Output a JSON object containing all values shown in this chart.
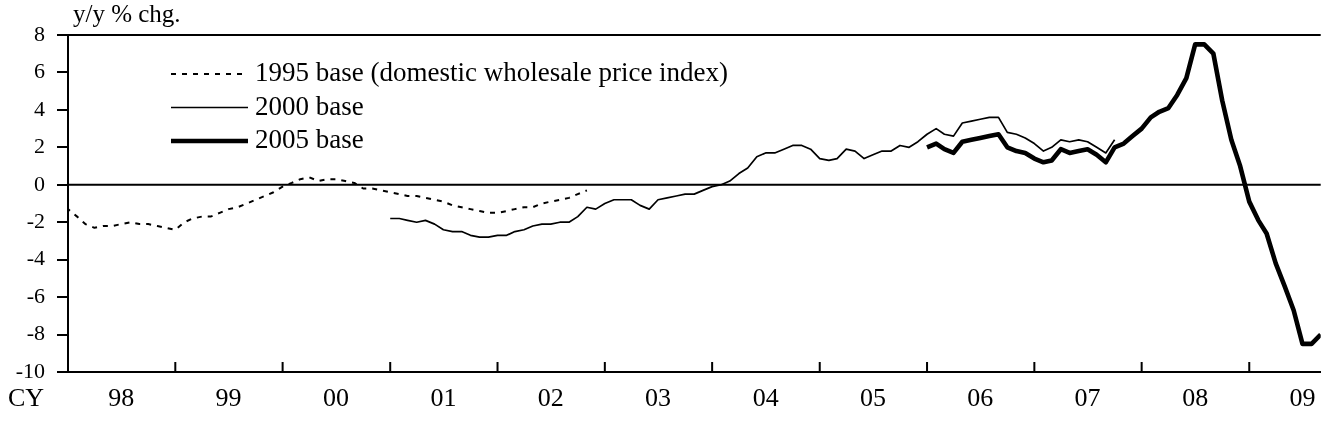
{
  "chart_data": {
    "type": "line",
    "ylabel": "y/y % chg.",
    "xlabel": "CY",
    "xlim": [
      "1998-01",
      "2009-09"
    ],
    "xticks": [
      {
        "value": "1998-01",
        "label": null
      },
      {
        "value": "1998-07",
        "label": "98"
      },
      {
        "value": "1999-01",
        "label": null
      },
      {
        "value": "1999-07",
        "label": "99"
      },
      {
        "value": "2000-01",
        "label": null
      },
      {
        "value": "2000-07",
        "label": "00"
      },
      {
        "value": "2001-01",
        "label": null
      },
      {
        "value": "2001-07",
        "label": "01"
      },
      {
        "value": "2002-01",
        "label": null
      },
      {
        "value": "2002-07",
        "label": "02"
      },
      {
        "value": "2003-01",
        "label": null
      },
      {
        "value": "2003-07",
        "label": "03"
      },
      {
        "value": "2004-01",
        "label": null
      },
      {
        "value": "2004-07",
        "label": "04"
      },
      {
        "value": "2005-01",
        "label": null
      },
      {
        "value": "2005-07",
        "label": "05"
      },
      {
        "value": "2006-01",
        "label": null
      },
      {
        "value": "2006-07",
        "label": "06"
      },
      {
        "value": "2007-01",
        "label": null
      },
      {
        "value": "2007-07",
        "label": "07"
      },
      {
        "value": "2008-01",
        "label": null
      },
      {
        "value": "2008-07",
        "label": "08"
      },
      {
        "value": "2009-01",
        "label": null
      },
      {
        "value": "2009-07",
        "label": "09"
      }
    ],
    "ylim": [
      -10,
      8
    ],
    "yticks": [
      -10,
      -8,
      -6,
      -4,
      -2,
      0,
      2,
      4,
      6,
      8
    ],
    "legend": "top left",
    "ref_lines": [
      {
        "axis": "y",
        "value": 0,
        "color": "#000000"
      }
    ],
    "series": [
      {
        "name": "1995 base (domestic wholesale price index)",
        "color": "#000000",
        "line_style": "dashed",
        "x": [
          "1998-01",
          "1998-02",
          "1998-03",
          "1998-04",
          "1998-05",
          "1998-06",
          "1998-07",
          "1998-08",
          "1998-09",
          "1998-10",
          "1998-11",
          "1998-12",
          "1999-01",
          "1999-02",
          "1999-03",
          "1999-04",
          "1999-05",
          "1999-06",
          "1999-07",
          "1999-08",
          "1999-09",
          "1999-10",
          "1999-11",
          "1999-12",
          "2000-01",
          "2000-02",
          "2000-03",
          "2000-04",
          "2000-05",
          "2000-06",
          "2000-07",
          "2000-08",
          "2000-09",
          "2000-10",
          "2000-11",
          "2000-12",
          "2001-01",
          "2001-02",
          "2001-03",
          "2001-04",
          "2001-05",
          "2001-06",
          "2001-07",
          "2001-08",
          "2001-09",
          "2001-10",
          "2001-11",
          "2001-12",
          "2002-01",
          "2002-02",
          "2002-03",
          "2002-04",
          "2002-05",
          "2002-06",
          "2002-07",
          "2002-08",
          "2002-09",
          "2002-10",
          "2002-11"
        ],
        "values": [
          -1.3,
          -1.7,
          -2.1,
          -2.3,
          -2.2,
          -2.2,
          -2.1,
          -2.0,
          -2.1,
          -2.1,
          -2.2,
          -2.3,
          -2.4,
          -2.0,
          -1.8,
          -1.7,
          -1.7,
          -1.5,
          -1.3,
          -1.2,
          -1.0,
          -0.8,
          -0.6,
          -0.4,
          -0.1,
          0.1,
          0.3,
          0.4,
          0.2,
          0.3,
          0.3,
          0.2,
          0.1,
          -0.2,
          -0.2,
          -0.3,
          -0.4,
          -0.5,
          -0.6,
          -0.6,
          -0.7,
          -0.8,
          -0.9,
          -1.1,
          -1.2,
          -1.3,
          -1.4,
          -1.5,
          -1.5,
          -1.4,
          -1.3,
          -1.2,
          -1.2,
          -1.0,
          -0.9,
          -0.8,
          -0.7,
          -0.5,
          -0.3
        ]
      },
      {
        "name": "2000 base",
        "color": "#000000",
        "line_style": "solid",
        "x": [
          "2001-01",
          "2001-02",
          "2001-03",
          "2001-04",
          "2001-05",
          "2001-06",
          "2001-07",
          "2001-08",
          "2001-09",
          "2001-10",
          "2001-11",
          "2001-12",
          "2002-01",
          "2002-02",
          "2002-03",
          "2002-04",
          "2002-05",
          "2002-06",
          "2002-07",
          "2002-08",
          "2002-09",
          "2002-10",
          "2002-11",
          "2002-12",
          "2003-01",
          "2003-02",
          "2003-03",
          "2003-04",
          "2003-05",
          "2003-06",
          "2003-07",
          "2003-08",
          "2003-09",
          "2003-10",
          "2003-11",
          "2003-12",
          "2004-01",
          "2004-02",
          "2004-03",
          "2004-04",
          "2004-05",
          "2004-06",
          "2004-07",
          "2004-08",
          "2004-09",
          "2004-10",
          "2004-11",
          "2004-12",
          "2005-01",
          "2005-02",
          "2005-03",
          "2005-04",
          "2005-05",
          "2005-06",
          "2005-07",
          "2005-08",
          "2005-09",
          "2005-10",
          "2005-11",
          "2005-12",
          "2006-01",
          "2006-02",
          "2006-03",
          "2006-04",
          "2006-05",
          "2006-06",
          "2006-07",
          "2006-08",
          "2006-09",
          "2006-10",
          "2006-11",
          "2006-12",
          "2007-01",
          "2007-02",
          "2007-03",
          "2007-04",
          "2007-05",
          "2007-06",
          "2007-07",
          "2007-08",
          "2007-09",
          "2007-10"
        ],
        "values": [
          -1.8,
          -1.8,
          -1.9,
          -2.0,
          -1.9,
          -2.1,
          -2.4,
          -2.5,
          -2.5,
          -2.7,
          -2.8,
          -2.8,
          -2.7,
          -2.7,
          -2.5,
          -2.4,
          -2.2,
          -2.1,
          -2.1,
          -2.0,
          -2.0,
          -1.7,
          -1.2,
          -1.3,
          -1.0,
          -0.8,
          -0.8,
          -0.8,
          -1.1,
          -1.3,
          -0.8,
          -0.7,
          -0.6,
          -0.5,
          -0.5,
          -0.3,
          -0.1,
          0.0,
          0.2,
          0.6,
          0.9,
          1.5,
          1.7,
          1.7,
          1.9,
          2.1,
          2.1,
          1.9,
          1.4,
          1.3,
          1.4,
          1.9,
          1.8,
          1.4,
          1.6,
          1.8,
          1.8,
          2.1,
          2.0,
          2.3,
          2.7,
          3.0,
          2.7,
          2.6,
          3.3,
          3.4,
          3.5,
          3.6,
          3.6,
          2.8,
          2.7,
          2.5,
          2.2,
          1.8,
          2.0,
          2.4,
          2.3,
          2.4,
          2.3,
          2.0,
          1.7,
          2.4
        ]
      },
      {
        "name": "2005 base",
        "color": "#000000",
        "line_style": "solid",
        "x": [
          "2006-01",
          "2006-02",
          "2006-03",
          "2006-04",
          "2006-05",
          "2006-06",
          "2006-07",
          "2006-08",
          "2006-09",
          "2006-10",
          "2006-11",
          "2006-12",
          "2007-01",
          "2007-02",
          "2007-03",
          "2007-04",
          "2007-05",
          "2007-06",
          "2007-07",
          "2007-08",
          "2007-09",
          "2007-10",
          "2007-11",
          "2007-12",
          "2008-01",
          "2008-02",
          "2008-03",
          "2008-04",
          "2008-05",
          "2008-06",
          "2008-07",
          "2008-08",
          "2008-09",
          "2008-10",
          "2008-11",
          "2008-12",
          "2009-01",
          "2009-02",
          "2009-03",
          "2009-04",
          "2009-05",
          "2009-06",
          "2009-07",
          "2009-08",
          "2009-09"
        ],
        "values": [
          2.0,
          2.2,
          1.9,
          1.7,
          2.3,
          2.4,
          2.5,
          2.6,
          2.7,
          2.0,
          1.8,
          1.7,
          1.4,
          1.2,
          1.3,
          1.9,
          1.7,
          1.8,
          1.9,
          1.6,
          1.2,
          2.0,
          2.2,
          2.6,
          3.0,
          3.6,
          3.9,
          4.1,
          4.8,
          5.7,
          7.5,
          7.5,
          7.0,
          4.5,
          2.4,
          1.0,
          -0.9,
          -1.9,
          -2.6,
          -4.2,
          -5.4,
          -6.7,
          -8.5,
          -8.5,
          -8.0
        ]
      }
    ]
  }
}
